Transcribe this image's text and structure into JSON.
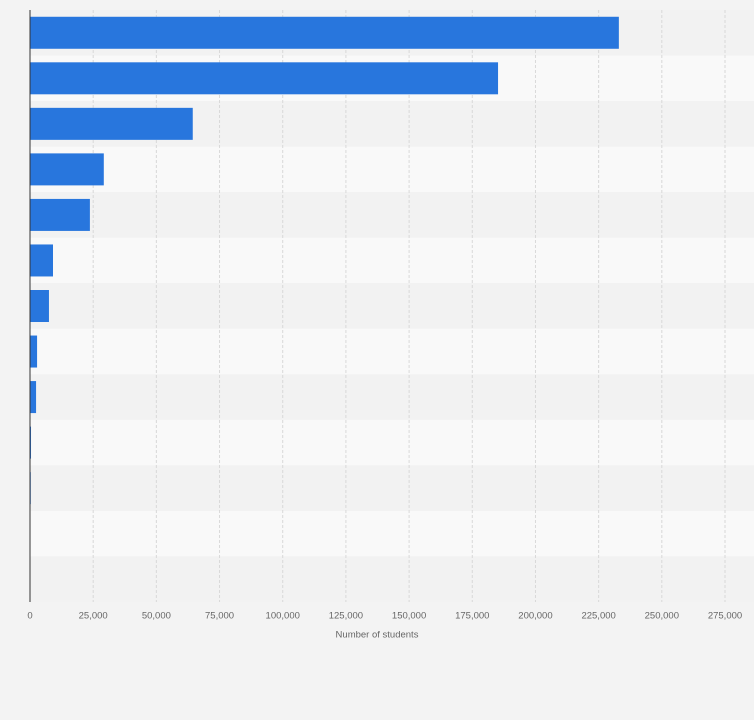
{
  "chart_data": {
    "type": "barh",
    "x_label": "Number of students",
    "categories": [
      null,
      null,
      null,
      null,
      null,
      null,
      null,
      null,
      null,
      null,
      null,
      null,
      null
    ],
    "values": [
      233000,
      185200,
      64400,
      29200,
      23700,
      9100,
      7500,
      2800,
      2400,
      400,
      300,
      0,
      0
    ],
    "color": "#2876dd",
    "xlim": [
      0,
      275000
    ],
    "xticks": [
      0,
      {
        "value": 25000,
        "label": "25,000"
      },
      {
        "value": 50000,
        "label": "50,000"
      },
      {
        "value": 75000,
        "label": "75,000"
      },
      {
        "value": 100000,
        "label": "100,000"
      },
      {
        "value": 125000,
        "label": "125,000"
      },
      {
        "value": 150000,
        "label": "150,000"
      },
      {
        "value": 175000,
        "label": "175,000"
      },
      {
        "value": 200000,
        "label": "200,000"
      },
      {
        "value": 225000,
        "label": "225,000"
      },
      {
        "value": 250000,
        "label": "250,000"
      },
      {
        "value": 275000,
        "label": "275,000"
      }
    ],
    "grid": true
  }
}
